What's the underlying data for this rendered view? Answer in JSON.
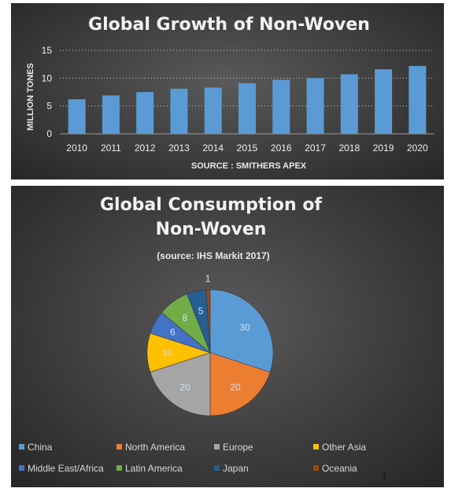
{
  "colors": {
    "bar": "#5b9bd5",
    "china": "#5b9bd5",
    "north_america": "#ed7d31",
    "europe": "#a5a5a5",
    "other_asia": "#ffc000",
    "middle_east_africa": "#4472c4",
    "latin_america": "#70ad47",
    "japan": "#255e91",
    "oceania": "#9e480e"
  },
  "chart_data": [
    {
      "type": "bar",
      "title": "Global Growth of Non-Woven",
      "ylabel": "MILLION TONES",
      "xlabel": "SOURCE : SMITHERS APEX",
      "categories": [
        "2010",
        "2011",
        "2012",
        "2013",
        "2014",
        "2015",
        "2016",
        "2017",
        "2018",
        "2019",
        "2020"
      ],
      "values": [
        6.2,
        6.9,
        7.5,
        8.1,
        8.3,
        9.1,
        9.7,
        10.0,
        10.7,
        11.6,
        12.2
      ],
      "ylim": [
        0,
        15
      ],
      "yticks": [
        "0",
        "5",
        "10",
        "15"
      ],
      "grid": true
    },
    {
      "type": "pie",
      "title_line1": "Global Consumption of",
      "title_line2": "Non-Woven",
      "subtitle": "(source: IHS Markit 2017)",
      "slices": [
        {
          "label": "China",
          "value": 30,
          "value_label": "30",
          "color_key": "china"
        },
        {
          "label": "North America",
          "value": 20,
          "value_label": "20",
          "color_key": "north_america"
        },
        {
          "label": "Europe",
          "value": 20,
          "value_label": "20",
          "color_key": "europe"
        },
        {
          "label": "Other Asia",
          "value": 10,
          "value_label": "10",
          "color_key": "other_asia"
        },
        {
          "label": "Middle East/Africa",
          "value": 6,
          "value_label": "6",
          "color_key": "middle_east_africa"
        },
        {
          "label": "Latin America",
          "value": 8,
          "value_label": "8",
          "color_key": "latin_america"
        },
        {
          "label": "Japan",
          "value": 5,
          "value_label": "5",
          "color_key": "japan"
        },
        {
          "label": "Oceania",
          "value": 1,
          "value_label": "1",
          "color_key": "oceania"
        }
      ],
      "legend_position": "bottom"
    }
  ]
}
